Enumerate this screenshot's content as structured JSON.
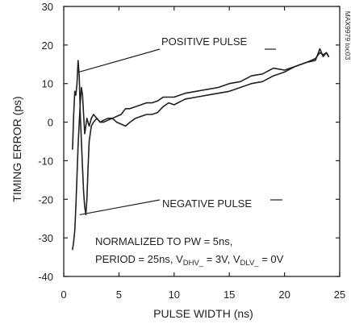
{
  "chart_data": {
    "type": "line",
    "xlabel": "PULSE WIDTH (ns)",
    "ylabel": "TIMING ERROR (ps)",
    "xlim": [
      0,
      25
    ],
    "ylim": [
      -40,
      30
    ],
    "x_ticks": [
      "0",
      "5",
      "10",
      "15",
      "20",
      "25"
    ],
    "y_ticks": [
      "-40",
      "-30",
      "-20",
      "-10",
      "0",
      "10",
      "20",
      "30"
    ],
    "grid": false,
    "watermark": "MAX9979 toc03",
    "annotations": {
      "positive": "POSITIVE PULSE",
      "negative": "NEGATIVE PULSE",
      "note_line1": "NORMALIZED TO PW = 5ns,",
      "note_line2_a": "PERIOD = 25ns, V",
      "note_line2_sub1": "DHV_",
      "note_line2_b": " = 3V, V",
      "note_line2_sub2": "DLV_",
      "note_line2_c": " = 0V"
    },
    "series": [
      {
        "name": "POSITIVE PULSE",
        "x": [
          0.8,
          0.9,
          1.0,
          1.1,
          1.2,
          1.3,
          1.4,
          1.5,
          1.6,
          1.7,
          1.8,
          1.9,
          2.0,
          2.1,
          2.2,
          2.3,
          2.5,
          2.7,
          3.0,
          3.3,
          3.6,
          4.0,
          4.4,
          4.8,
          5.2,
          5.6,
          6.0,
          6.5,
          7.0,
          7.5,
          8.0,
          8.5,
          9.0,
          9.5,
          10.0,
          11,
          12,
          13,
          14,
          15,
          16,
          17,
          18,
          19,
          20,
          21,
          22,
          22.8,
          23.2,
          23.5,
          23.8,
          24.0
        ],
        "y": [
          -7,
          2,
          8,
          7,
          10,
          16,
          12,
          2,
          -5,
          -12,
          -18,
          -22,
          -24,
          -20,
          -12,
          -5,
          -1,
          0,
          1,
          0,
          0.5,
          1,
          1,
          1.5,
          2,
          3.5,
          3.5,
          4,
          4.5,
          5,
          5,
          5.5,
          6.5,
          6.5,
          6.5,
          7.5,
          8,
          8.5,
          9,
          10,
          10.5,
          12,
          12.5,
          14,
          13.5,
          14.5,
          15.5,
          16,
          19,
          17,
          18,
          17
        ]
      },
      {
        "name": "NEGATIVE PULSE",
        "x": [
          0.8,
          0.9,
          1.0,
          1.1,
          1.2,
          1.3,
          1.4,
          1.5,
          1.6,
          1.7,
          1.8,
          1.9,
          2.0,
          2.1,
          2.2,
          2.3,
          2.5,
          2.7,
          3.0,
          3.3,
          3.6,
          4.0,
          4.4,
          4.8,
          5.2,
          5.6,
          6.0,
          6.5,
          7.0,
          7.5,
          8.0,
          8.5,
          9.0,
          9.5,
          10.0,
          11,
          12,
          13,
          14,
          15,
          16,
          17,
          18,
          19,
          20,
          21,
          22,
          22.8,
          23.2,
          23.5,
          23.8,
          24.0
        ],
        "y": [
          -33,
          -31,
          -28,
          -22,
          -14,
          -6,
          0,
          5,
          9,
          7,
          2,
          -3,
          -1,
          1,
          0,
          -1,
          1,
          2,
          1,
          0,
          0,
          0.5,
          1,
          0,
          -0.5,
          -1,
          0,
          1,
          1.5,
          2,
          2,
          2.5,
          4,
          5,
          4.5,
          6,
          6.5,
          7,
          7.5,
          8,
          9,
          10,
          10.5,
          12,
          13,
          14.5,
          15.5,
          16.5,
          18,
          17.5,
          18,
          17
        ]
      }
    ]
  }
}
